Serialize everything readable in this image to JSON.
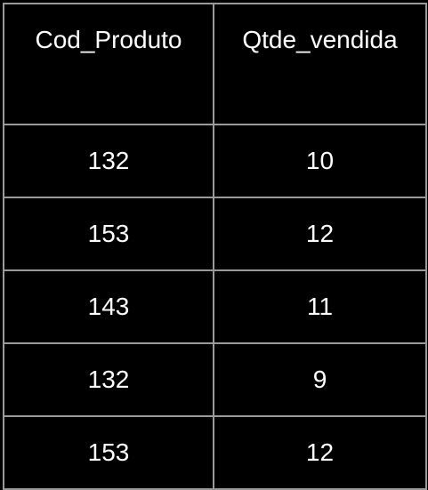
{
  "table": {
    "columns": [
      "Cod_Produto",
      "Qtde_vendida"
    ],
    "rows": [
      [
        "132",
        "10"
      ],
      [
        "153",
        "12"
      ],
      [
        "143",
        "11"
      ],
      [
        "132",
        "9"
      ],
      [
        "153",
        "12"
      ]
    ]
  },
  "colors": {
    "background": "#000000",
    "text": "#ffffff",
    "border": "#9a9a9a"
  }
}
